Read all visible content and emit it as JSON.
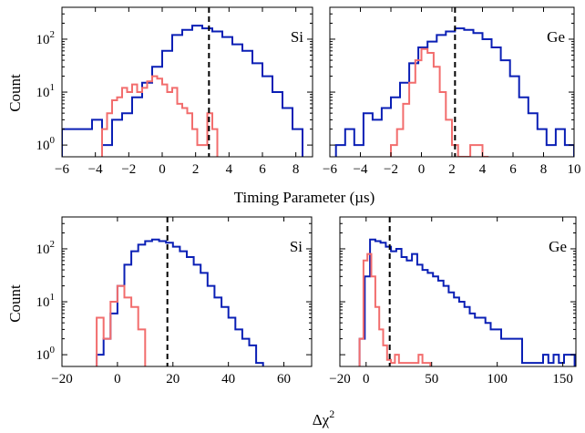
{
  "colors": {
    "blue_series": "#0a1fb5",
    "red_series": "#f26d6d",
    "threshold": "#000000",
    "axes": "#000000"
  },
  "figure": {
    "top_xlabel": "Timing Parameter (µs)",
    "bottom_xlabel_main": "Δχ",
    "bottom_xlabel_sup": "2",
    "ylabel_top": "Count",
    "ylabel_bottom": "Count"
  },
  "chart_data": [
    {
      "type": "histogram",
      "panel_label": "Si",
      "xlim": [
        -6,
        9
      ],
      "yscale": "log",
      "ylim": [
        0.6,
        400
      ],
      "xticks": [
        -6,
        -4,
        -2,
        0,
        2,
        4,
        6,
        8
      ],
      "xtick_labels": [
        "−6",
        "−4",
        "−2",
        "0",
        "2",
        "4",
        "6",
        "8"
      ],
      "yticks": [
        1,
        10,
        100
      ],
      "ytick_labels": [
        "10",
        "10",
        "10"
      ],
      "ytick_exps": [
        "0",
        "1",
        "2"
      ],
      "threshold": 2.8,
      "series": [
        {
          "color": "blue",
          "edges": [
            -6,
            -5.4,
            -4.8,
            -4.2,
            -3.6,
            -3.0,
            -2.4,
            -1.8,
            -1.2,
            -0.6,
            0.0,
            0.6,
            1.2,
            1.8,
            2.4,
            3.0,
            3.6,
            4.2,
            4.8,
            5.4,
            6.0,
            6.6,
            7.2,
            7.8,
            8.4
          ],
          "counts": [
            2,
            2,
            2,
            3,
            1,
            3,
            4,
            8,
            15,
            30,
            60,
            120,
            150,
            180,
            160,
            140,
            110,
            80,
            60,
            35,
            20,
            10,
            5,
            2
          ]
        },
        {
          "color": "red",
          "edges": [
            -3.6,
            -3.3,
            -3.0,
            -2.7,
            -2.4,
            -2.1,
            -1.8,
            -1.5,
            -1.2,
            -0.9,
            -0.6,
            -0.3,
            0.0,
            0.3,
            0.6,
            0.9,
            1.2,
            1.5,
            1.8,
            2.1,
            2.4,
            2.7,
            3.0,
            3.3
          ],
          "counts": [
            2,
            4,
            7,
            8,
            12,
            10,
            14,
            10,
            12,
            16,
            20,
            18,
            14,
            10,
            12,
            6,
            5,
            4,
            2,
            1,
            1,
            4,
            2
          ]
        }
      ]
    },
    {
      "type": "histogram",
      "panel_label": "Ge",
      "xlim": [
        -6,
        10
      ],
      "yscale": "log",
      "ylim": [
        0.6,
        400
      ],
      "xticks": [
        -6,
        -4,
        -2,
        0,
        2,
        4,
        6,
        8,
        10
      ],
      "xtick_labels": [
        "−6",
        "−4",
        "−2",
        "0",
        "2",
        "4",
        "6",
        "8",
        "10"
      ],
      "yticks": [
        1,
        10,
        100
      ],
      "threshold": 2.2,
      "series": [
        {
          "color": "blue",
          "edges": [
            -5.6,
            -5.0,
            -4.4,
            -3.8,
            -3.2,
            -2.6,
            -2.0,
            -1.4,
            -0.8,
            -0.2,
            0.4,
            1.0,
            1.6,
            2.2,
            2.8,
            3.4,
            4.0,
            4.6,
            5.2,
            5.8,
            6.4,
            7.0,
            7.6,
            8.2,
            8.8,
            9.4,
            10.0
          ],
          "counts": [
            1,
            2,
            1,
            4,
            3,
            5,
            8,
            15,
            35,
            70,
            90,
            120,
            140,
            160,
            150,
            130,
            100,
            70,
            40,
            20,
            8,
            4,
            2,
            1,
            2,
            1
          ]
        },
        {
          "color": "red",
          "edges": [
            -2.0,
            -1.6,
            -1.2,
            -0.8,
            -0.4,
            0.0,
            0.4,
            0.8,
            1.2,
            1.6,
            2.0,
            2.4,
            2.8,
            3.2,
            3.6,
            4.0,
            4.4
          ],
          "counts": [
            1,
            2,
            6,
            15,
            40,
            65,
            55,
            30,
            10,
            3,
            1,
            0.6,
            0.6,
            1,
            1,
            0.6
          ]
        }
      ]
    },
    {
      "type": "histogram",
      "panel_label": "Si",
      "xlim": [
        -20,
        70
      ],
      "yscale": "log",
      "ylim": [
        0.6,
        400
      ],
      "xticks": [
        -20,
        0,
        20,
        40,
        60
      ],
      "xtick_labels": [
        "−20",
        "0",
        "20",
        "40",
        "60"
      ],
      "yticks": [
        1,
        10,
        100
      ],
      "ytick_labels": [
        "10",
        "10",
        "10"
      ],
      "ytick_exps": [
        "0",
        "1",
        "2"
      ],
      "threshold": 18,
      "series": [
        {
          "color": "blue",
          "edges": [
            -7.5,
            -5,
            -2.5,
            0,
            2.5,
            5,
            7.5,
            10,
            12.5,
            15,
            17.5,
            20,
            22.5,
            25,
            27.5,
            30,
            32.5,
            35,
            37.5,
            40,
            42.5,
            45,
            47.5,
            50,
            52.5
          ],
          "counts": [
            1,
            2,
            6,
            20,
            50,
            90,
            120,
            140,
            150,
            140,
            130,
            110,
            90,
            70,
            50,
            35,
            20,
            12,
            8,
            5,
            3,
            2,
            1.5,
            0.7
          ]
        },
        {
          "color": "red",
          "edges": [
            -7.5,
            -5,
            -2.5,
            0,
            2.5,
            5,
            7.5,
            10
          ],
          "counts": [
            5,
            2,
            10,
            20,
            12,
            8,
            3
          ]
        }
      ]
    },
    {
      "type": "histogram",
      "panel_label": "Ge",
      "xlim": [
        -20,
        160
      ],
      "yscale": "log",
      "ylim": [
        0.6,
        400
      ],
      "xticks": [
        -20,
        0,
        50,
        100,
        150
      ],
      "xtick_labels": [
        "−20",
        "0",
        "50",
        "100",
        "150"
      ],
      "yticks": [
        1,
        10,
        100
      ],
      "threshold": 18,
      "series": [
        {
          "color": "blue",
          "edges": [
            -5,
            -1,
            3,
            7,
            11,
            15,
            19,
            23,
            27,
            31,
            35,
            39,
            43,
            47,
            51,
            55,
            59,
            63,
            67,
            71,
            75,
            79,
            83,
            87,
            91,
            95,
            99,
            103,
            107,
            111,
            115,
            119,
            123,
            127,
            131,
            135,
            139,
            143,
            147,
            151,
            155,
            159
          ],
          "counts": [
            2,
            30,
            150,
            140,
            130,
            110,
            90,
            100,
            70,
            60,
            80,
            50,
            40,
            35,
            30,
            25,
            20,
            15,
            12,
            10,
            8,
            6,
            5,
            5,
            4,
            3,
            3,
            2,
            2,
            2,
            2,
            0.7,
            0.7,
            0.7,
            0.7,
            1,
            0.7,
            1,
            0.7,
            1,
            1
          ]
        },
        {
          "color": "red",
          "edges": [
            -5,
            -2,
            1,
            4,
            7,
            10,
            13,
            16,
            19,
            22,
            25,
            28,
            31,
            34,
            37,
            40,
            43,
            46,
            49
          ],
          "counts": [
            2,
            60,
            80,
            30,
            8,
            3,
            1.5,
            0.8,
            0.7,
            1,
            0.7,
            0.7,
            0.7,
            0.7,
            0.7,
            1,
            0.7,
            0.7
          ]
        }
      ]
    }
  ]
}
